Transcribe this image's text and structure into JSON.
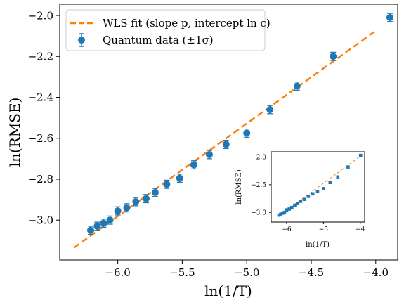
{
  "chart_data": [
    {
      "type": "scatter",
      "xlabel": "ln(1/T)",
      "ylabel": "ln(RMSE)",
      "xlim": [
        -6.45,
        -3.83
      ],
      "ylim": [
        -3.195,
        -1.945
      ],
      "xticks": [
        -6.0,
        -5.5,
        -5.0,
        -4.5,
        -4.0
      ],
      "xtick_labels": [
        "−6.0",
        "−5.5",
        "−5.0",
        "−4.5",
        "−4.0"
      ],
      "yticks": [
        -3.0,
        -2.8,
        -2.6,
        -2.4,
        -2.2,
        -2.0
      ],
      "ytick_labels": [
        "−3.0",
        "−2.8",
        "−2.6",
        "−2.4",
        "−2.2",
        "−2.0"
      ],
      "grid": false,
      "legend_position": "upper-left",
      "series": [
        {
          "name": "WLS fit (slope p, intercept ln c)",
          "kind": "line",
          "style": "dashed",
          "color": "#ff7f0e",
          "x": [
            -6.34,
            -4.0
          ],
          "y": [
            -3.135,
            -2.075
          ]
        },
        {
          "name": "Quantum data (±1σ)",
          "kind": "errorbar",
          "color": "#1f77b4",
          "x": [
            -6.21,
            -6.16,
            -6.11,
            -6.06,
            -6.0,
            -5.93,
            -5.86,
            -5.78,
            -5.71,
            -5.62,
            -5.52,
            -5.41,
            -5.29,
            -5.16,
            -5.0,
            -4.82,
            -4.61,
            -4.33,
            -3.89
          ],
          "y": [
            -3.05,
            -3.03,
            -3.015,
            -3.0,
            -2.955,
            -2.94,
            -2.91,
            -2.895,
            -2.865,
            -2.825,
            -2.795,
            -2.73,
            -2.68,
            -2.63,
            -2.575,
            -2.46,
            -2.345,
            -2.2,
            -2.01
          ],
          "yerr": [
            0.02,
            0.02,
            0.02,
            0.02,
            0.02,
            0.02,
            0.02,
            0.02,
            0.02,
            0.02,
            0.02,
            0.02,
            0.02,
            0.02,
            0.02,
            0.02,
            0.02,
            0.02,
            0.02
          ]
        }
      ]
    },
    {
      "type": "scatter",
      "xlabel": "ln(1/T)",
      "ylabel": "ln(RMSE)",
      "xlim": [
        -6.42,
        -3.88
      ],
      "ylim": [
        -3.175,
        -1.905
      ],
      "xticks": [
        -6,
        -5,
        -4
      ],
      "xtick_labels": [
        "−6",
        "−5",
        "−4"
      ],
      "yticks": [
        -3.0,
        -2.5,
        -2.0
      ],
      "ytick_labels": [
        "−3.0",
        "−2.5",
        "−2.0"
      ],
      "grid": false,
      "series": [
        {
          "kind": "line",
          "style": "dashed",
          "color": "#ff7f0e",
          "x": [
            -6.24,
            -3.95
          ],
          "y": [
            -3.08,
            -1.96
          ]
        },
        {
          "kind": "points",
          "color": "#1f77b4",
          "x": [
            -6.21,
            -6.16,
            -6.11,
            -6.06,
            -6.0,
            -5.93,
            -5.86,
            -5.78,
            -5.71,
            -5.62,
            -5.52,
            -5.41,
            -5.29,
            -5.16,
            -5.0,
            -4.82,
            -4.61,
            -4.33,
            -3.99
          ],
          "y": [
            -3.05,
            -3.03,
            -3.015,
            -3.0,
            -2.955,
            -2.94,
            -2.91,
            -2.87,
            -2.84,
            -2.8,
            -2.765,
            -2.71,
            -2.665,
            -2.625,
            -2.57,
            -2.46,
            -2.36,
            -2.18,
            -1.97
          ]
        }
      ]
    }
  ]
}
